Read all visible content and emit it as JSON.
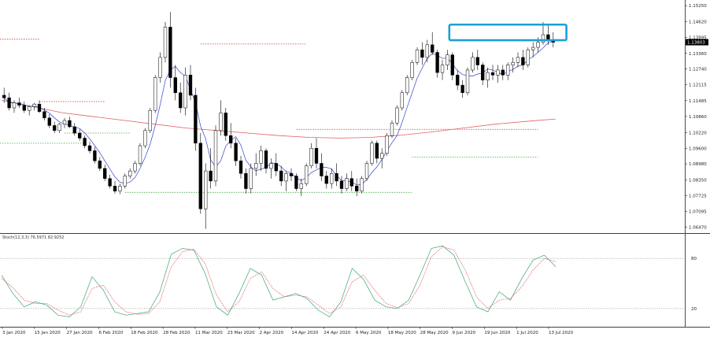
{
  "chart_data": [
    {
      "type": "candlestick",
      "title": "",
      "price_axis": {
        "ticks": [
          "1.15250",
          "1.14620",
          "1.13995",
          "1.13360",
          "1.12740",
          "1.12115",
          "1.11485",
          "1.10860",
          "1.10220",
          "1.09600",
          "1.08980",
          "1.08350",
          "1.07725",
          "1.07095",
          "1.06470"
        ],
        "ylim": [
          1.063,
          1.1535
        ],
        "current_price": "1.13803"
      },
      "date_axis": {
        "labels": [
          "3 Jan 2020",
          "15 Jan 2020",
          "27 Jan 2020",
          "6 Feb 2020",
          "18 Feb 2020",
          "28 Feb 2020",
          "11 Mar 2020",
          "23 Mar 2020",
          "2 Apr 2020",
          "14 Apr 2020",
          "24 Apr 2020",
          "6 May 2020",
          "18 May 2020",
          "28 May 2020",
          "9 Jun 2020",
          "19 Jun 2020",
          "1 Jul 2020",
          "13 Jul 2020"
        ]
      },
      "candles": [
        {
          "o": 1.117,
          "h": 1.12,
          "l": 1.114,
          "c": 1.116
        },
        {
          "o": 1.116,
          "h": 1.118,
          "l": 1.111,
          "c": 1.112
        },
        {
          "o": 1.112,
          "h": 1.115,
          "l": 1.11,
          "c": 1.114
        },
        {
          "o": 1.114,
          "h": 1.116,
          "l": 1.112,
          "c": 1.113
        },
        {
          "o": 1.113,
          "h": 1.1145,
          "l": 1.11,
          "c": 1.111
        },
        {
          "o": 1.111,
          "h": 1.113,
          "l": 1.109,
          "c": 1.1125
        },
        {
          "o": 1.1125,
          "h": 1.114,
          "l": 1.111,
          "c": 1.1135
        },
        {
          "o": 1.1135,
          "h": 1.115,
          "l": 1.11,
          "c": 1.1105
        },
        {
          "o": 1.1105,
          "h": 1.112,
          "l": 1.107,
          "c": 1.108
        },
        {
          "o": 1.108,
          "h": 1.1095,
          "l": 1.104,
          "c": 1.105
        },
        {
          "o": 1.105,
          "h": 1.1065,
          "l": 1.102,
          "c": 1.103
        },
        {
          "o": 1.103,
          "h": 1.106,
          "l": 1.102,
          "c": 1.1055
        },
        {
          "o": 1.1055,
          "h": 1.108,
          "l": 1.104,
          "c": 1.107
        },
        {
          "o": 1.107,
          "h": 1.1085,
          "l": 1.104,
          "c": 1.1045
        },
        {
          "o": 1.1045,
          "h": 1.106,
          "l": 1.101,
          "c": 1.102
        },
        {
          "o": 1.102,
          "h": 1.1035,
          "l": 1.099,
          "c": 1.1
        },
        {
          "o": 1.1,
          "h": 1.101,
          "l": 1.096,
          "c": 1.097
        },
        {
          "o": 1.097,
          "h": 1.0985,
          "l": 1.094,
          "c": 1.095
        },
        {
          "o": 1.095,
          "h": 1.0965,
          "l": 1.09,
          "c": 1.091
        },
        {
          "o": 1.091,
          "h": 1.0925,
          "l": 1.087,
          "c": 1.088
        },
        {
          "o": 1.088,
          "h": 1.0895,
          "l": 1.083,
          "c": 1.084
        },
        {
          "o": 1.084,
          "h": 1.0855,
          "l": 1.08,
          "c": 1.081
        },
        {
          "o": 1.081,
          "h": 1.083,
          "l": 1.078,
          "c": 1.079
        },
        {
          "o": 1.079,
          "h": 1.082,
          "l": 1.0778,
          "c": 1.081
        },
        {
          "o": 1.081,
          "h": 1.086,
          "l": 1.08,
          "c": 1.085
        },
        {
          "o": 1.085,
          "h": 1.088,
          "l": 1.084,
          "c": 1.087
        },
        {
          "o": 1.087,
          "h": 1.091,
          "l": 1.086,
          "c": 1.09
        },
        {
          "o": 1.09,
          "h": 1.098,
          "l": 1.089,
          "c": 1.097
        },
        {
          "o": 1.097,
          "h": 1.104,
          "l": 1.096,
          "c": 1.103
        },
        {
          "o": 1.103,
          "h": 1.112,
          "l": 1.102,
          "c": 1.111
        },
        {
          "o": 1.111,
          "h": 1.125,
          "l": 1.11,
          "c": 1.124
        },
        {
          "o": 1.124,
          "h": 1.134,
          "l": 1.122,
          "c": 1.132
        },
        {
          "o": 1.132,
          "h": 1.146,
          "l": 1.13,
          "c": 1.144
        },
        {
          "o": 1.144,
          "h": 1.15,
          "l": 1.12,
          "c": 1.124
        },
        {
          "o": 1.124,
          "h": 1.129,
          "l": 1.115,
          "c": 1.118
        },
        {
          "o": 1.118,
          "h": 1.122,
          "l": 1.11,
          "c": 1.112
        },
        {
          "o": 1.112,
          "h": 1.128,
          "l": 1.109,
          "c": 1.125
        },
        {
          "o": 1.125,
          "h": 1.129,
          "l": 1.115,
          "c": 1.117
        },
        {
          "o": 1.117,
          "h": 1.12,
          "l": 1.095,
          "c": 1.098
        },
        {
          "o": 1.098,
          "h": 1.102,
          "l": 1.07,
          "c": 1.072
        },
        {
          "o": 1.072,
          "h": 1.09,
          "l": 1.064,
          "c": 1.087
        },
        {
          "o": 1.087,
          "h": 1.096,
          "l": 1.08,
          "c": 1.083
        },
        {
          "o": 1.083,
          "h": 1.105,
          "l": 1.081,
          "c": 1.103
        },
        {
          "o": 1.103,
          "h": 1.115,
          "l": 1.101,
          "c": 1.11
        },
        {
          "o": 1.11,
          "h": 1.112,
          "l": 1.099,
          "c": 1.101
        },
        {
          "o": 1.101,
          "h": 1.106,
          "l": 1.096,
          "c": 1.098
        },
        {
          "o": 1.098,
          "h": 1.1,
          "l": 1.089,
          "c": 1.091
        },
        {
          "o": 1.091,
          "h": 1.093,
          "l": 1.084,
          "c": 1.086
        },
        {
          "o": 1.086,
          "h": 1.088,
          "l": 1.078,
          "c": 1.08
        },
        {
          "o": 1.08,
          "h": 1.09,
          "l": 1.078,
          "c": 1.088
        },
        {
          "o": 1.088,
          "h": 1.094,
          "l": 1.085,
          "c": 1.09
        },
        {
          "o": 1.09,
          "h": 1.097,
          "l": 1.087,
          "c": 1.095
        },
        {
          "o": 1.095,
          "h": 1.096,
          "l": 1.086,
          "c": 1.088
        },
        {
          "o": 1.088,
          "h": 1.092,
          "l": 1.084,
          "c": 1.09
        },
        {
          "o": 1.09,
          "h": 1.094,
          "l": 1.085,
          "c": 1.087
        },
        {
          "o": 1.087,
          "h": 1.089,
          "l": 1.081,
          "c": 1.083
        },
        {
          "o": 1.083,
          "h": 1.087,
          "l": 1.079,
          "c": 1.086
        },
        {
          "o": 1.086,
          "h": 1.088,
          "l": 1.083,
          "c": 1.085
        },
        {
          "o": 1.085,
          "h": 1.086,
          "l": 1.079,
          "c": 1.08
        },
        {
          "o": 1.08,
          "h": 1.084,
          "l": 1.077,
          "c": 1.082
        },
        {
          "o": 1.082,
          "h": 1.09,
          "l": 1.081,
          "c": 1.089
        },
        {
          "o": 1.089,
          "h": 1.098,
          "l": 1.088,
          "c": 1.096
        },
        {
          "o": 1.096,
          "h": 1.1,
          "l": 1.088,
          "c": 1.09
        },
        {
          "o": 1.09,
          "h": 1.094,
          "l": 1.083,
          "c": 1.085
        },
        {
          "o": 1.085,
          "h": 1.087,
          "l": 1.08,
          "c": 1.082
        },
        {
          "o": 1.082,
          "h": 1.088,
          "l": 1.08,
          "c": 1.086
        },
        {
          "o": 1.086,
          "h": 1.09,
          "l": 1.081,
          "c": 1.083
        },
        {
          "o": 1.083,
          "h": 1.085,
          "l": 1.078,
          "c": 1.08
        },
        {
          "o": 1.08,
          "h": 1.086,
          "l": 1.079,
          "c": 1.084
        },
        {
          "o": 1.084,
          "h": 1.087,
          "l": 1.079,
          "c": 1.081
        },
        {
          "o": 1.081,
          "h": 1.084,
          "l": 1.077,
          "c": 1.079
        },
        {
          "o": 1.079,
          "h": 1.085,
          "l": 1.078,
          "c": 1.084
        },
        {
          "o": 1.084,
          "h": 1.091,
          "l": 1.083,
          "c": 1.09
        },
        {
          "o": 1.09,
          "h": 1.099,
          "l": 1.089,
          "c": 1.098
        },
        {
          "o": 1.098,
          "h": 1.099,
          "l": 1.09,
          "c": 1.092
        },
        {
          "o": 1.092,
          "h": 1.096,
          "l": 1.088,
          "c": 1.094
        },
        {
          "o": 1.094,
          "h": 1.102,
          "l": 1.093,
          "c": 1.101
        },
        {
          "o": 1.101,
          "h": 1.107,
          "l": 1.1,
          "c": 1.106
        },
        {
          "o": 1.106,
          "h": 1.113,
          "l": 1.105,
          "c": 1.112
        },
        {
          "o": 1.112,
          "h": 1.119,
          "l": 1.111,
          "c": 1.118
        },
        {
          "o": 1.118,
          "h": 1.125,
          "l": 1.117,
          "c": 1.124
        },
        {
          "o": 1.124,
          "h": 1.131,
          "l": 1.123,
          "c": 1.13
        },
        {
          "o": 1.13,
          "h": 1.136,
          "l": 1.129,
          "c": 1.135
        },
        {
          "o": 1.135,
          "h": 1.138,
          "l": 1.129,
          "c": 1.132
        },
        {
          "o": 1.132,
          "h": 1.139,
          "l": 1.13,
          "c": 1.137
        },
        {
          "o": 1.137,
          "h": 1.142,
          "l": 1.133,
          "c": 1.134
        },
        {
          "o": 1.134,
          "h": 1.135,
          "l": 1.124,
          "c": 1.126
        },
        {
          "o": 1.126,
          "h": 1.131,
          "l": 1.123,
          "c": 1.129
        },
        {
          "o": 1.129,
          "h": 1.135,
          "l": 1.127,
          "c": 1.133
        },
        {
          "o": 1.133,
          "h": 1.134,
          "l": 1.123,
          "c": 1.125
        },
        {
          "o": 1.125,
          "h": 1.127,
          "l": 1.119,
          "c": 1.121
        },
        {
          "o": 1.121,
          "h": 1.123,
          "l": 1.116,
          "c": 1.118
        },
        {
          "o": 1.118,
          "h": 1.128,
          "l": 1.117,
          "c": 1.127
        },
        {
          "o": 1.127,
          "h": 1.134,
          "l": 1.126,
          "c": 1.132
        },
        {
          "o": 1.132,
          "h": 1.135,
          "l": 1.127,
          "c": 1.129
        },
        {
          "o": 1.129,
          "h": 1.13,
          "l": 1.121,
          "c": 1.123
        },
        {
          "o": 1.123,
          "h": 1.128,
          "l": 1.12,
          "c": 1.126
        },
        {
          "o": 1.126,
          "h": 1.129,
          "l": 1.123,
          "c": 1.125
        },
        {
          "o": 1.125,
          "h": 1.129,
          "l": 1.122,
          "c": 1.127
        },
        {
          "o": 1.127,
          "h": 1.129,
          "l": 1.123,
          "c": 1.125
        },
        {
          "o": 1.125,
          "h": 1.13,
          "l": 1.123,
          "c": 1.129
        },
        {
          "o": 1.129,
          "h": 1.132,
          "l": 1.126,
          "c": 1.13
        },
        {
          "o": 1.13,
          "h": 1.134,
          "l": 1.128,
          "c": 1.132
        },
        {
          "o": 1.132,
          "h": 1.135,
          "l": 1.127,
          "c": 1.129
        },
        {
          "o": 1.129,
          "h": 1.136,
          "l": 1.128,
          "c": 1.135
        },
        {
          "o": 1.135,
          "h": 1.138,
          "l": 1.132,
          "c": 1.136
        },
        {
          "o": 1.136,
          "h": 1.14,
          "l": 1.134,
          "c": 1.138
        },
        {
          "o": 1.138,
          "h": 1.146,
          "l": 1.137,
          "c": 1.141
        },
        {
          "o": 1.141,
          "h": 1.145,
          "l": 1.137,
          "c": 1.139
        },
        {
          "o": 1.139,
          "h": 1.142,
          "l": 1.136,
          "c": 1.138
        }
      ],
      "moving_average_200": [
        1.115,
        1.1125,
        1.11,
        1.1085,
        1.107,
        1.1055,
        1.104,
        1.103,
        1.102,
        1.101,
        1.1003,
        1.1,
        1.1003,
        1.1012,
        1.1025,
        1.104,
        1.1055,
        1.1066,
        1.1076
      ],
      "resistance_zone": {
        "from": 1.1388,
        "to": 1.145,
        "start_index": 89,
        "end_index": 111
      },
      "levels": [
        {
          "price": 1.1373,
          "color": "#dd3333",
          "start_index": 39,
          "end_index": 60
        },
        {
          "price": 1.1392,
          "color": "#dd3333",
          "start_index": -1,
          "end_index": 7
        },
        {
          "price": 1.1145,
          "color": "#dd3333",
          "start_index": 7,
          "end_index": 20
        },
        {
          "price": 1.102,
          "color": "#44aa44",
          "start_index": 12,
          "end_index": 25
        },
        {
          "price": 1.098,
          "color": "#44aa44",
          "start_index": -1,
          "end_index": 16
        },
        {
          "price": 1.1035,
          "color": "#dd3333",
          "start_index": 58,
          "end_index": 106
        },
        {
          "price": 1.0925,
          "color": "#44aa44",
          "start_index": 81,
          "end_index": 106
        },
        {
          "price": 1.0785,
          "color": "#44aa44",
          "start_index": 24,
          "end_index": 81
        }
      ]
    },
    {
      "type": "line",
      "title": "Stoch(12,3,3) 76.5971 82.9252",
      "ylim": [
        0,
        100
      ],
      "levels": [
        "80",
        "20"
      ],
      "series": [
        {
          "color": "#3aa67a",
          "values": [
            60,
            38,
            22,
            28,
            24,
            12,
            10,
            22,
            58,
            42,
            16,
            12,
            14,
            16,
            40,
            85,
            92,
            90,
            62,
            22,
            12,
            38,
            68,
            60,
            30,
            34,
            38,
            32,
            18,
            10,
            28,
            68,
            55,
            30,
            22,
            20,
            30,
            60,
            92,
            95,
            84,
            52,
            22,
            16,
            40,
            30,
            56,
            78,
            84,
            70
          ]
        },
        {
          "color": "#e05555",
          "values": [
            56,
            45,
            30,
            26,
            26,
            18,
            12,
            16,
            44,
            48,
            28,
            16,
            13,
            14,
            28,
            70,
            88,
            91,
            74,
            36,
            16,
            28,
            56,
            64,
            44,
            34,
            36,
            34,
            24,
            14,
            22,
            52,
            60,
            42,
            26,
            21,
            26,
            48,
            82,
            94,
            90,
            66,
            34,
            20,
            30,
            32,
            46,
            66,
            80,
            76
          ]
        }
      ]
    }
  ]
}
